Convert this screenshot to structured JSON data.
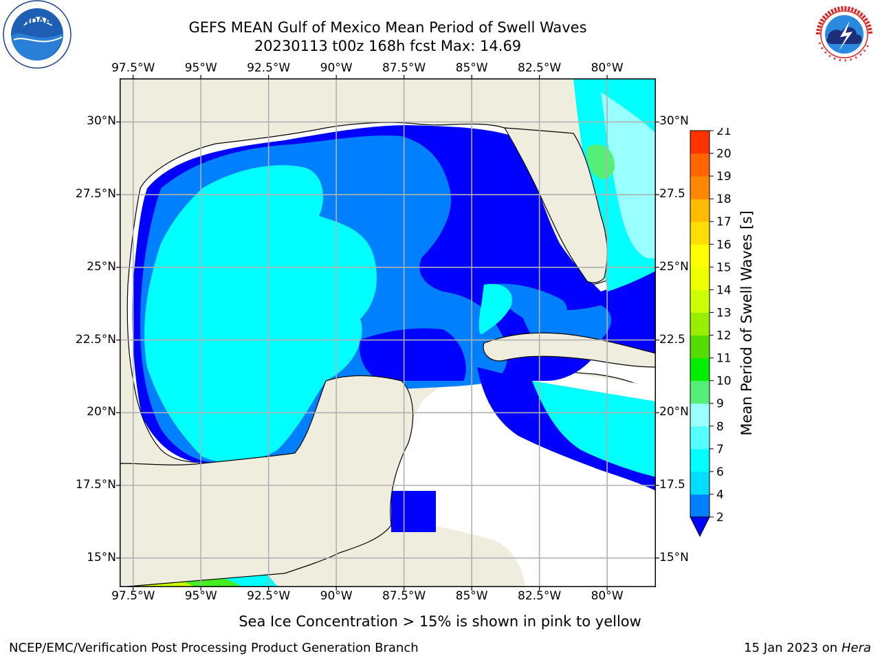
{
  "title_line1": "GEFS MEAN Gulf of Mexico Mean Period of Swell Waves",
  "title_line2": "20230113 t00z 168h fcst   Max: 14.69",
  "subtitle": "Sea Ice Concentration > 15% is shown in pink to yellow",
  "footer_left": "NCEP/EMC/Verification Post Processing Product Generation Branch",
  "footer_date": "15 Jan 2023 on ",
  "footer_host": "Hera",
  "logos": {
    "left_icon": "noaa-logo",
    "left_text": "NOAA",
    "right_icon": "nws-logo",
    "right_text": "NATIONAL WEATHER SERVICE"
  },
  "map": {
    "lon_range": [
      -98.0,
      -78.2
    ],
    "lat_range": [
      14.0,
      31.5
    ],
    "lon_ticks": [
      "97.5°W",
      "95°W",
      "92.5°W",
      "90°W",
      "87.5°W",
      "85°W",
      "82.5°W",
      "80°W"
    ],
    "lat_ticks_left": [
      "30°N",
      "27.5°N",
      "25°N",
      "22.5°N",
      "20°N",
      "17.5°N",
      "15°N"
    ],
    "lat_ticks_right": [
      "30°N",
      "27.5",
      "25°N",
      "22.5",
      "20°N",
      "17.5",
      "15°N"
    ],
    "grid": true,
    "land_color": "#efedde",
    "colors": {
      "below_2": "#0000ff",
      "2_4": "#0080ff",
      "4_6": "#00ffff",
      "8_9": "#99ffff",
      "9_10": "#55ee77",
      "11_12": "#44ee22",
      "12_13": "#ccff00"
    }
  },
  "colorbar": {
    "label": "Mean Period of Swell Waves [s]",
    "ticks": [
      "2",
      "4",
      "6",
      "7",
      "8",
      "9",
      "10",
      "11",
      "12",
      "13",
      "14",
      "15",
      "16",
      "17",
      "18",
      "19",
      "20",
      "21"
    ],
    "colors": [
      "#0080ff",
      "#00ddff",
      "#00ffff",
      "#55ffff",
      "#99ffff",
      "#55ee77",
      "#00ee00",
      "#55dd00",
      "#99ee00",
      "#ccff00",
      "#eeff00",
      "#ffff00",
      "#ffdd00",
      "#ffbb00",
      "#ff8800",
      "#ff6600",
      "#ff3300",
      "#ff0000"
    ],
    "extend_color": "#0000ff"
  }
}
